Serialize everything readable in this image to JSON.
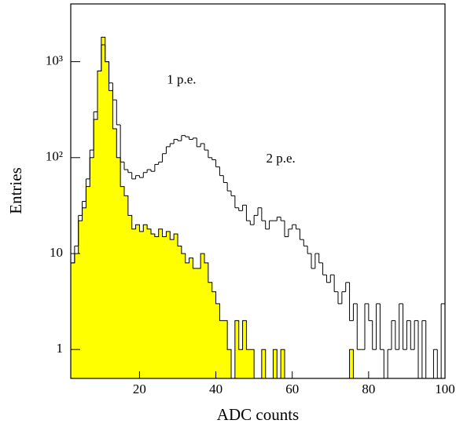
{
  "chart_data": {
    "type": "histogram",
    "xlabel": "ADC counts",
    "ylabel": "Entries",
    "annotations": [
      {
        "text": "1 p.e.",
        "x": 31,
        "y": 300
      },
      {
        "text": "2 p.e.",
        "x": 57,
        "y": 45
      }
    ],
    "bins": [
      2,
      3,
      4,
      5,
      6,
      7,
      8,
      9,
      10,
      11,
      12,
      13,
      14,
      15,
      16,
      17,
      18,
      19,
      20,
      21,
      22,
      23,
      24,
      25,
      26,
      27,
      28,
      29,
      30,
      31,
      32,
      33,
      34,
      35,
      36,
      37,
      38,
      39,
      40,
      41,
      42,
      43,
      44,
      45,
      46,
      47,
      48,
      49,
      50,
      51,
      52,
      53,
      54,
      55,
      56,
      57,
      58,
      59,
      60,
      61,
      62,
      63,
      64,
      65,
      66,
      67,
      68,
      69,
      70,
      71,
      72,
      73,
      74,
      75,
      76,
      77,
      78,
      79,
      80,
      81,
      82,
      83,
      84,
      85,
      86,
      87,
      88,
      89,
      90,
      91,
      92,
      93,
      94,
      95,
      96,
      97,
      98,
      99,
      100
    ],
    "series": [
      {
        "color": "#ffff00",
        "fill": true,
        "values": [
          8,
          10,
          22,
          30,
          50,
          100,
          250,
          800,
          1800,
          1000,
          500,
          200,
          100,
          50,
          40,
          25,
          18,
          20,
          17,
          20,
          18,
          16,
          15,
          18,
          15,
          17,
          14,
          16,
          12,
          10,
          8,
          9,
          7,
          7,
          10,
          8,
          5,
          4,
          3,
          2,
          2,
          1,
          0,
          2,
          1,
          2,
          1,
          1,
          0,
          0,
          1,
          0,
          0,
          1,
          0,
          1,
          0,
          0,
          0,
          0,
          0,
          0,
          0,
          0,
          0,
          0,
          0,
          0,
          0,
          0,
          0,
          0,
          0,
          1,
          0,
          0,
          0,
          0,
          0,
          0,
          0,
          0,
          0,
          0,
          0,
          0,
          0,
          0,
          0,
          0,
          0,
          0,
          0,
          0,
          0,
          0,
          0,
          0
        ]
      },
      {
        "color": "#000000",
        "fill": false,
        "values": [
          8,
          12,
          25,
          35,
          60,
          120,
          300,
          800,
          1500,
          1000,
          600,
          400,
          220,
          90,
          75,
          70,
          60,
          65,
          62,
          70,
          75,
          72,
          85,
          90,
          110,
          130,
          140,
          155,
          150,
          170,
          165,
          155,
          160,
          130,
          140,
          120,
          100,
          95,
          80,
          65,
          55,
          45,
          40,
          30,
          28,
          32,
          22,
          20,
          25,
          30,
          22,
          18,
          22,
          22,
          24,
          22,
          15,
          18,
          20,
          18,
          14,
          12,
          10,
          7,
          10,
          8,
          6,
          5,
          6,
          4,
          3,
          4,
          5,
          2,
          3,
          1,
          1,
          3,
          2,
          1,
          3,
          1,
          0,
          1,
          2,
          1,
          3,
          1,
          2,
          1,
          2,
          0,
          2,
          0,
          0,
          1,
          0,
          3
        ]
      }
    ],
    "xlim": [
      2,
      100
    ],
    "xticks": [
      20,
      40,
      60,
      80,
      100
    ],
    "ylim": [
      0.5,
      4000
    ],
    "yticks": [
      1,
      10,
      {
        "value": 100,
        "label": "10²"
      },
      {
        "value": 1000,
        "label": "10³"
      }
    ],
    "log_y": true,
    "grid": false
  }
}
